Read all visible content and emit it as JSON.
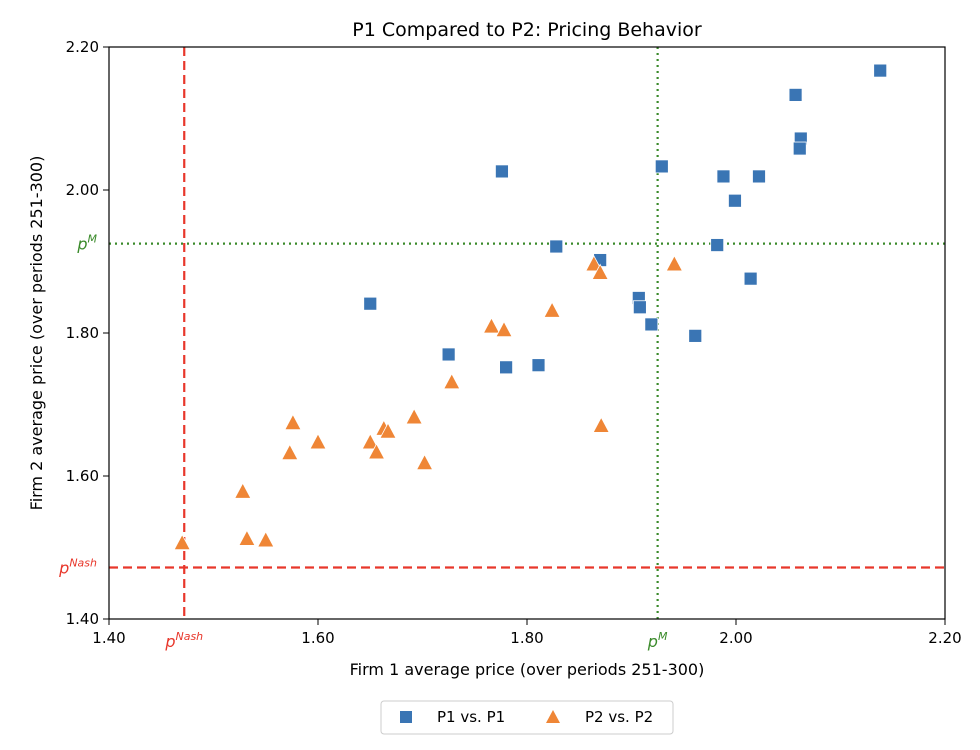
{
  "chart_data": {
    "type": "scatter",
    "title": "P1 Compared to P2: Pricing Behavior",
    "xlabel": "Firm 1 average price (over periods 251-300)",
    "ylabel": "Firm 2 average price (over periods 251-300)",
    "xlim": [
      1.4,
      2.2
    ],
    "ylim": [
      1.4,
      2.2
    ],
    "xticks": [
      1.4,
      1.6,
      1.8,
      2.0,
      2.2
    ],
    "yticks": [
      1.4,
      1.6,
      1.8,
      2.0,
      2.2
    ],
    "xtick_labels": [
      "1.40",
      "1.60",
      "1.80",
      "2.00",
      "2.20"
    ],
    "ytick_labels": [
      "1.40",
      "1.60",
      "1.80",
      "2.00",
      "2.20"
    ],
    "grid": false,
    "legend_position": "bottom-center",
    "reference_lines": [
      {
        "name": "p_nash",
        "label_base": "p",
        "label_sup": "Nash",
        "x": 1.472,
        "y": 1.472,
        "style": "dashed",
        "color": "#e8372b"
      },
      {
        "name": "p_monopoly",
        "label_base": "p",
        "label_sup": "M",
        "x": 1.925,
        "y": 1.925,
        "style": "dotted",
        "color": "#3a8a2a"
      }
    ],
    "series": [
      {
        "name": "P1 vs. P1",
        "marker": "square",
        "color": "#3a75b4",
        "points": [
          [
            2.138,
            2.167
          ],
          [
            2.057,
            2.133
          ],
          [
            2.062,
            2.072
          ],
          [
            2.061,
            2.058
          ],
          [
            1.776,
            2.026
          ],
          [
            1.929,
            2.033
          ],
          [
            1.988,
            2.019
          ],
          [
            2.022,
            2.019
          ],
          [
            1.999,
            1.985
          ],
          [
            1.828,
            1.921
          ],
          [
            1.982,
            1.923
          ],
          [
            1.87,
            1.902
          ],
          [
            2.014,
            1.876
          ],
          [
            1.907,
            1.849
          ],
          [
            1.908,
            1.836
          ],
          [
            1.919,
            1.812
          ],
          [
            1.65,
            1.841
          ],
          [
            1.725,
            1.77
          ],
          [
            1.961,
            1.796
          ],
          [
            1.78,
            1.752
          ],
          [
            1.811,
            1.755
          ]
        ]
      },
      {
        "name": "P2 vs. P2",
        "marker": "triangle",
        "color": "#ef8636",
        "points": [
          [
            1.864,
            1.896
          ],
          [
            1.87,
            1.884
          ],
          [
            1.941,
            1.896
          ],
          [
            1.824,
            1.831
          ],
          [
            1.766,
            1.809
          ],
          [
            1.778,
            1.804
          ],
          [
            1.871,
            1.67
          ],
          [
            1.728,
            1.731
          ],
          [
            1.692,
            1.682
          ],
          [
            1.576,
            1.674
          ],
          [
            1.663,
            1.666
          ],
          [
            1.667,
            1.662
          ],
          [
            1.6,
            1.647
          ],
          [
            1.65,
            1.647
          ],
          [
            1.573,
            1.632
          ],
          [
            1.656,
            1.633
          ],
          [
            1.702,
            1.618
          ],
          [
            1.528,
            1.578
          ],
          [
            1.47,
            1.506
          ],
          [
            1.532,
            1.512
          ],
          [
            1.55,
            1.51
          ]
        ]
      }
    ]
  }
}
